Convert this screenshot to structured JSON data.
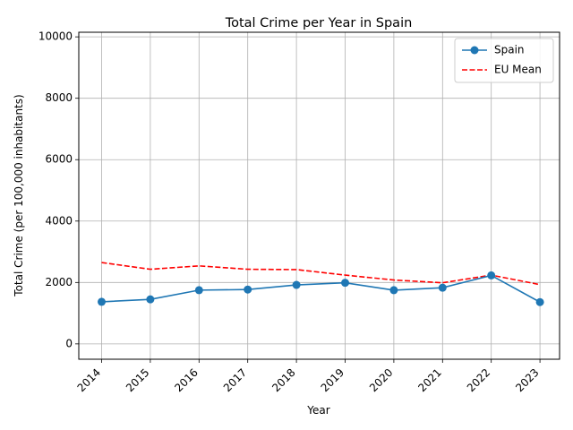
{
  "chart_data": {
    "type": "line",
    "title": "Total Crime per Year in Spain",
    "xlabel": "Year",
    "ylabel": "Total Crime (per 100,000 inhabitants)",
    "x": [
      "2014",
      "2015",
      "2016",
      "2017",
      "2018",
      "2019",
      "2020",
      "2021",
      "2022",
      "2023"
    ],
    "ylim": [
      -500,
      10150
    ],
    "yticks": [
      0,
      2000,
      4000,
      6000,
      8000,
      10000
    ],
    "grid": true,
    "legend_position": "top-right",
    "series": [
      {
        "name": "Spain",
        "style": "solid",
        "marker": "circle",
        "color": "#1f77b4",
        "values": [
          1370,
          1450,
          1750,
          1770,
          1920,
          1990,
          1750,
          1830,
          2230,
          1360
        ]
      },
      {
        "name": "EU Mean",
        "style": "dashed",
        "marker": "none",
        "color": "#ff0000",
        "values": [
          2650,
          2430,
          2540,
          2430,
          2420,
          2240,
          2080,
          1990,
          2240,
          1930
        ]
      }
    ]
  }
}
